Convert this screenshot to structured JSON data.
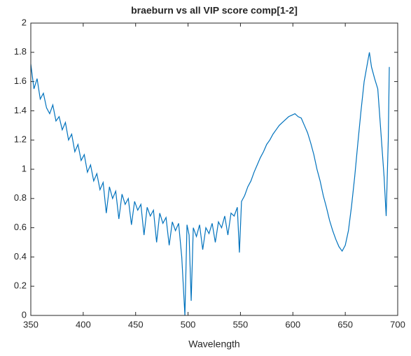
{
  "chart_data": {
    "type": "line",
    "title": "braeburn vs all VIP score comp[1-2]",
    "x_label": "Wavelength",
    "x": [
      350,
      353,
      356,
      359,
      362,
      365,
      368,
      371,
      374,
      377,
      380,
      383,
      386,
      389,
      392,
      395,
      398,
      401,
      404,
      407,
      410,
      413,
      416,
      419,
      422,
      425,
      428,
      431,
      434,
      437,
      440,
      443,
      446,
      449,
      452,
      455,
      458,
      461,
      464,
      467,
      470,
      473,
      476,
      479,
      482,
      485,
      488,
      491,
      494,
      497,
      499,
      501,
      503,
      505,
      508,
      511,
      514,
      517,
      520,
      523,
      526,
      529,
      532,
      535,
      538,
      541,
      544,
      547,
      549,
      551,
      554,
      557,
      560,
      563,
      566,
      569,
      572,
      575,
      578,
      581,
      584,
      587,
      590,
      593,
      596,
      599,
      602,
      605,
      608,
      611,
      614,
      617,
      620,
      623,
      626,
      629,
      632,
      635,
      638,
      641,
      644,
      647,
      650,
      653,
      656,
      659,
      662,
      665,
      668,
      671,
      673,
      675,
      678,
      681,
      684,
      687,
      689,
      691,
      692
    ],
    "series": [
      {
        "name": "VIP score",
        "color": "#0072BD",
        "values": [
          1.72,
          1.55,
          1.62,
          1.48,
          1.52,
          1.42,
          1.38,
          1.44,
          1.33,
          1.36,
          1.27,
          1.32,
          1.2,
          1.24,
          1.12,
          1.17,
          1.06,
          1.1,
          0.98,
          1.03,
          0.92,
          0.97,
          0.86,
          0.91,
          0.7,
          0.88,
          0.8,
          0.85,
          0.66,
          0.83,
          0.76,
          0.8,
          0.62,
          0.78,
          0.72,
          0.76,
          0.55,
          0.74,
          0.68,
          0.72,
          0.5,
          0.7,
          0.63,
          0.67,
          0.48,
          0.64,
          0.58,
          0.63,
          0.4,
          0.0,
          0.62,
          0.55,
          0.1,
          0.6,
          0.54,
          0.62,
          0.45,
          0.6,
          0.56,
          0.63,
          0.5,
          0.64,
          0.6,
          0.68,
          0.55,
          0.7,
          0.68,
          0.74,
          0.43,
          0.78,
          0.82,
          0.88,
          0.92,
          0.98,
          1.03,
          1.08,
          1.12,
          1.17,
          1.2,
          1.24,
          1.27,
          1.3,
          1.32,
          1.34,
          1.36,
          1.37,
          1.38,
          1.36,
          1.35,
          1.3,
          1.25,
          1.18,
          1.1,
          1.0,
          0.92,
          0.82,
          0.74,
          0.65,
          0.58,
          0.52,
          0.47,
          0.44,
          0.48,
          0.58,
          0.75,
          0.95,
          1.18,
          1.4,
          1.6,
          1.72,
          1.8,
          1.7,
          1.62,
          1.55,
          1.25,
          0.95,
          0.68,
          1.2,
          1.7
        ]
      }
    ],
    "xlim": [
      350,
      700
    ],
    "xticks": [
      350,
      400,
      450,
      500,
      550,
      600,
      650,
      700
    ],
    "ylim": [
      0,
      2
    ],
    "yticks": [
      0,
      0.2,
      0.4,
      0.6,
      0.8,
      1,
      1.2,
      1.4,
      1.6,
      1.8,
      2
    ]
  }
}
